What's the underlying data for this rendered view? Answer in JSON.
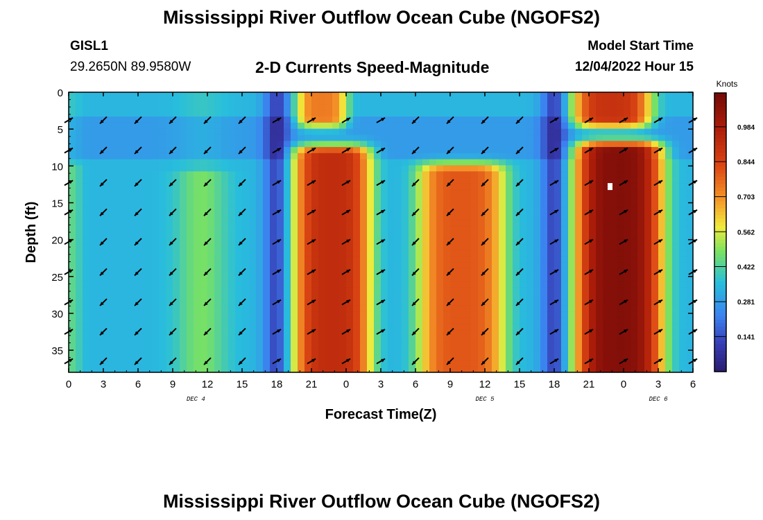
{
  "page": {
    "title_top": "Mississippi River Outflow Ocean Cube (NGOFS2)",
    "title_bottom": "Mississippi River Outflow Ocean Cube (NGOFS2)",
    "station_id": "GISL1",
    "station_coords": "29.2650N  89.9580W",
    "subtitle": "2-D Currents Speed-Magnitude",
    "model_start_label": "Model Start Time",
    "model_start_value": "12/04/2022 Hour 15"
  },
  "chart_data": {
    "type": "heatmap",
    "title": "2-D Currents Speed-Magnitude",
    "xlabel": "Forecast Time(Z)",
    "ylabel": "Depth (ft)",
    "x_range_hours": [
      0,
      54
    ],
    "y_range_ft": [
      0,
      38
    ],
    "x_tick_labels": [
      "0",
      "3",
      "6",
      "9",
      "12",
      "15",
      "18",
      "21",
      "0",
      "3",
      "6",
      "9",
      "12",
      "15",
      "18",
      "21",
      "0",
      "3",
      "6"
    ],
    "x_tick_hours": [
      0,
      3,
      6,
      9,
      12,
      15,
      18,
      21,
      24,
      27,
      30,
      33,
      36,
      39,
      42,
      45,
      48,
      51,
      54
    ],
    "date_labels": [
      {
        "text": "DEC 4",
        "hour": 11
      },
      {
        "text": "DEC 5",
        "hour": 36
      },
      {
        "text": "DEC 6",
        "hour": 51
      }
    ],
    "y_ticks": [
      0,
      5,
      10,
      15,
      20,
      25,
      30,
      35
    ],
    "y_tick_labels": [
      "0",
      "5",
      "10",
      "15",
      "20",
      "25",
      "30",
      "35"
    ],
    "colorbar": {
      "unit": "Knots",
      "min": 0.0,
      "max": 1.12,
      "tick_labels": [
        "0.141",
        "0.281",
        "0.422",
        "0.562",
        "0.703",
        "0.844",
        "0.984"
      ],
      "tick_values": [
        0.141,
        0.281,
        0.422,
        0.562,
        0.703,
        0.844,
        0.984
      ]
    },
    "speed_pulses_knots": [
      {
        "name": "pulse-1 upper",
        "hour": 21.9,
        "depth_min": 0,
        "depth_max": 3.5,
        "peak": 0.74,
        "width_h": 2.2
      },
      {
        "name": "pulse-1 lower",
        "hour": 22.8,
        "depth_min": 8.5,
        "depth_max": 38,
        "peak": 0.92,
        "width_h": 3.4
      },
      {
        "name": "pulse-2 lower",
        "hour": 34.0,
        "depth_min": 11,
        "depth_max": 38,
        "peak": 0.8,
        "width_h": 3.8
      },
      {
        "name": "pulse-3 upper",
        "hour": 47.0,
        "depth_min": 0,
        "depth_max": 3.5,
        "peak": 0.9,
        "width_h": 3.4
      },
      {
        "name": "pulse-3 lower",
        "hour": 47.6,
        "depth_min": 8.0,
        "depth_max": 38,
        "peak": 1.08,
        "width_h": 3.8
      }
    ],
    "slack_hours": [
      18.0,
      42.0
    ],
    "background_speed_knots": 0.34,
    "arrow_hours": [
      0,
      3,
      6,
      9,
      12,
      15,
      18,
      21,
      24,
      27,
      30,
      33,
      36,
      39,
      42,
      45,
      48,
      51,
      54
    ],
    "arrow_depths_ft": [
      3.8,
      7.9,
      12.3,
      16.3,
      20.3,
      24.4,
      28.5,
      32.5,
      36.5
    ],
    "arrow_direction_phases": [
      {
        "hour_start": 0,
        "hour_end": 1,
        "deg": -30
      },
      {
        "hour_start": 1,
        "hour_end": 17,
        "deg": 135
      },
      {
        "hour_start": 17,
        "hour_end": 29,
        "deg": -30
      },
      {
        "hour_start": 29,
        "hour_end": 41,
        "deg": 135
      },
      {
        "hour_start": 41,
        "hour_end": 55,
        "deg": -30
      }
    ],
    "marker": {
      "hour": 46.8,
      "depth_ft": 12.8,
      "color": "#ffffff"
    }
  }
}
